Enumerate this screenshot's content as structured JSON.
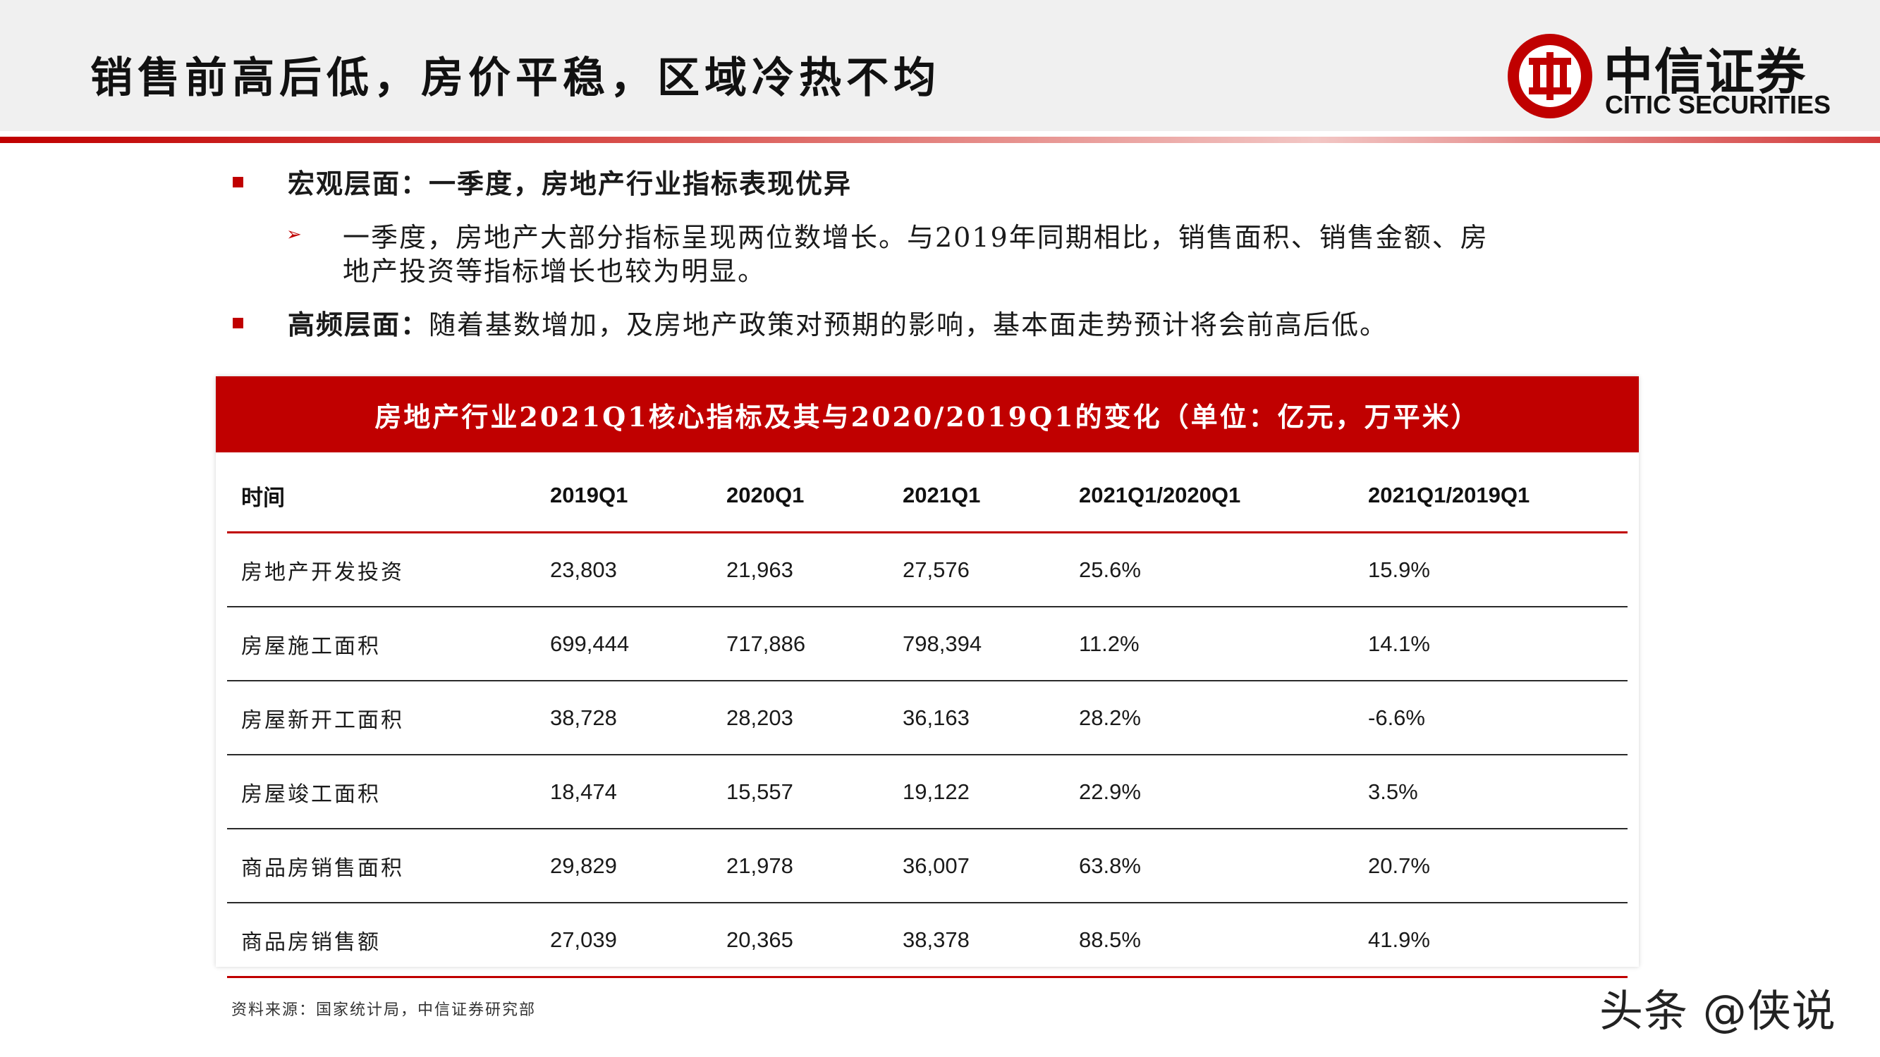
{
  "header": {
    "title": "销售前高后低，房价平稳，区域冷热不均",
    "logo": {
      "name_cn": "中信证券",
      "name_en": "CITIC SECURITIES",
      "brand_color": "#c00000"
    }
  },
  "bullets": {
    "macro_label": "宏观层面：",
    "macro_text": "一季度，房地产行业指标表现优异",
    "sub_line1": "一季度，房地产大部分指标呈现两位数增长。与2019年同期相比，销售面积、销售金额、房",
    "sub_line2": "地产投资等指标增长也较为明显。",
    "freq_label": "高频层面：",
    "freq_text": "随着基数增加，及房地产政策对预期的影响，基本面走势预计将会前高后低。"
  },
  "table": {
    "title": "房地产行业2021Q1核心指标及其与2020/2019Q1的变化（单位：亿元，万平米）",
    "headers": [
      "时间",
      "2019Q1",
      "2020Q1",
      "2021Q1",
      "2021Q1/2020Q1",
      "2021Q1/2019Q1"
    ],
    "rows": [
      [
        "房地产开发投资",
        "23,803",
        "21,963",
        "27,576",
        "25.6%",
        "15.9%"
      ],
      [
        "房屋施工面积",
        "699,444",
        "717,886",
        "798,394",
        "11.2%",
        "14.1%"
      ],
      [
        "房屋新开工面积",
        "38,728",
        "28,203",
        "36,163",
        "28.2%",
        "-6.6%"
      ],
      [
        "房屋竣工面积",
        "18,474",
        "15,557",
        "19,122",
        "22.9%",
        "3.5%"
      ],
      [
        "商品房销售面积",
        "29,829",
        "21,978",
        "36,007",
        "63.8%",
        "20.7%"
      ],
      [
        "商品房销售额",
        "27,039",
        "20,365",
        "38,378",
        "88.5%",
        "41.9%"
      ]
    ],
    "accent_color": "#c00000"
  },
  "source": "资料来源：国家统计局，中信证券研究部",
  "watermark": "头条 @侠说"
}
